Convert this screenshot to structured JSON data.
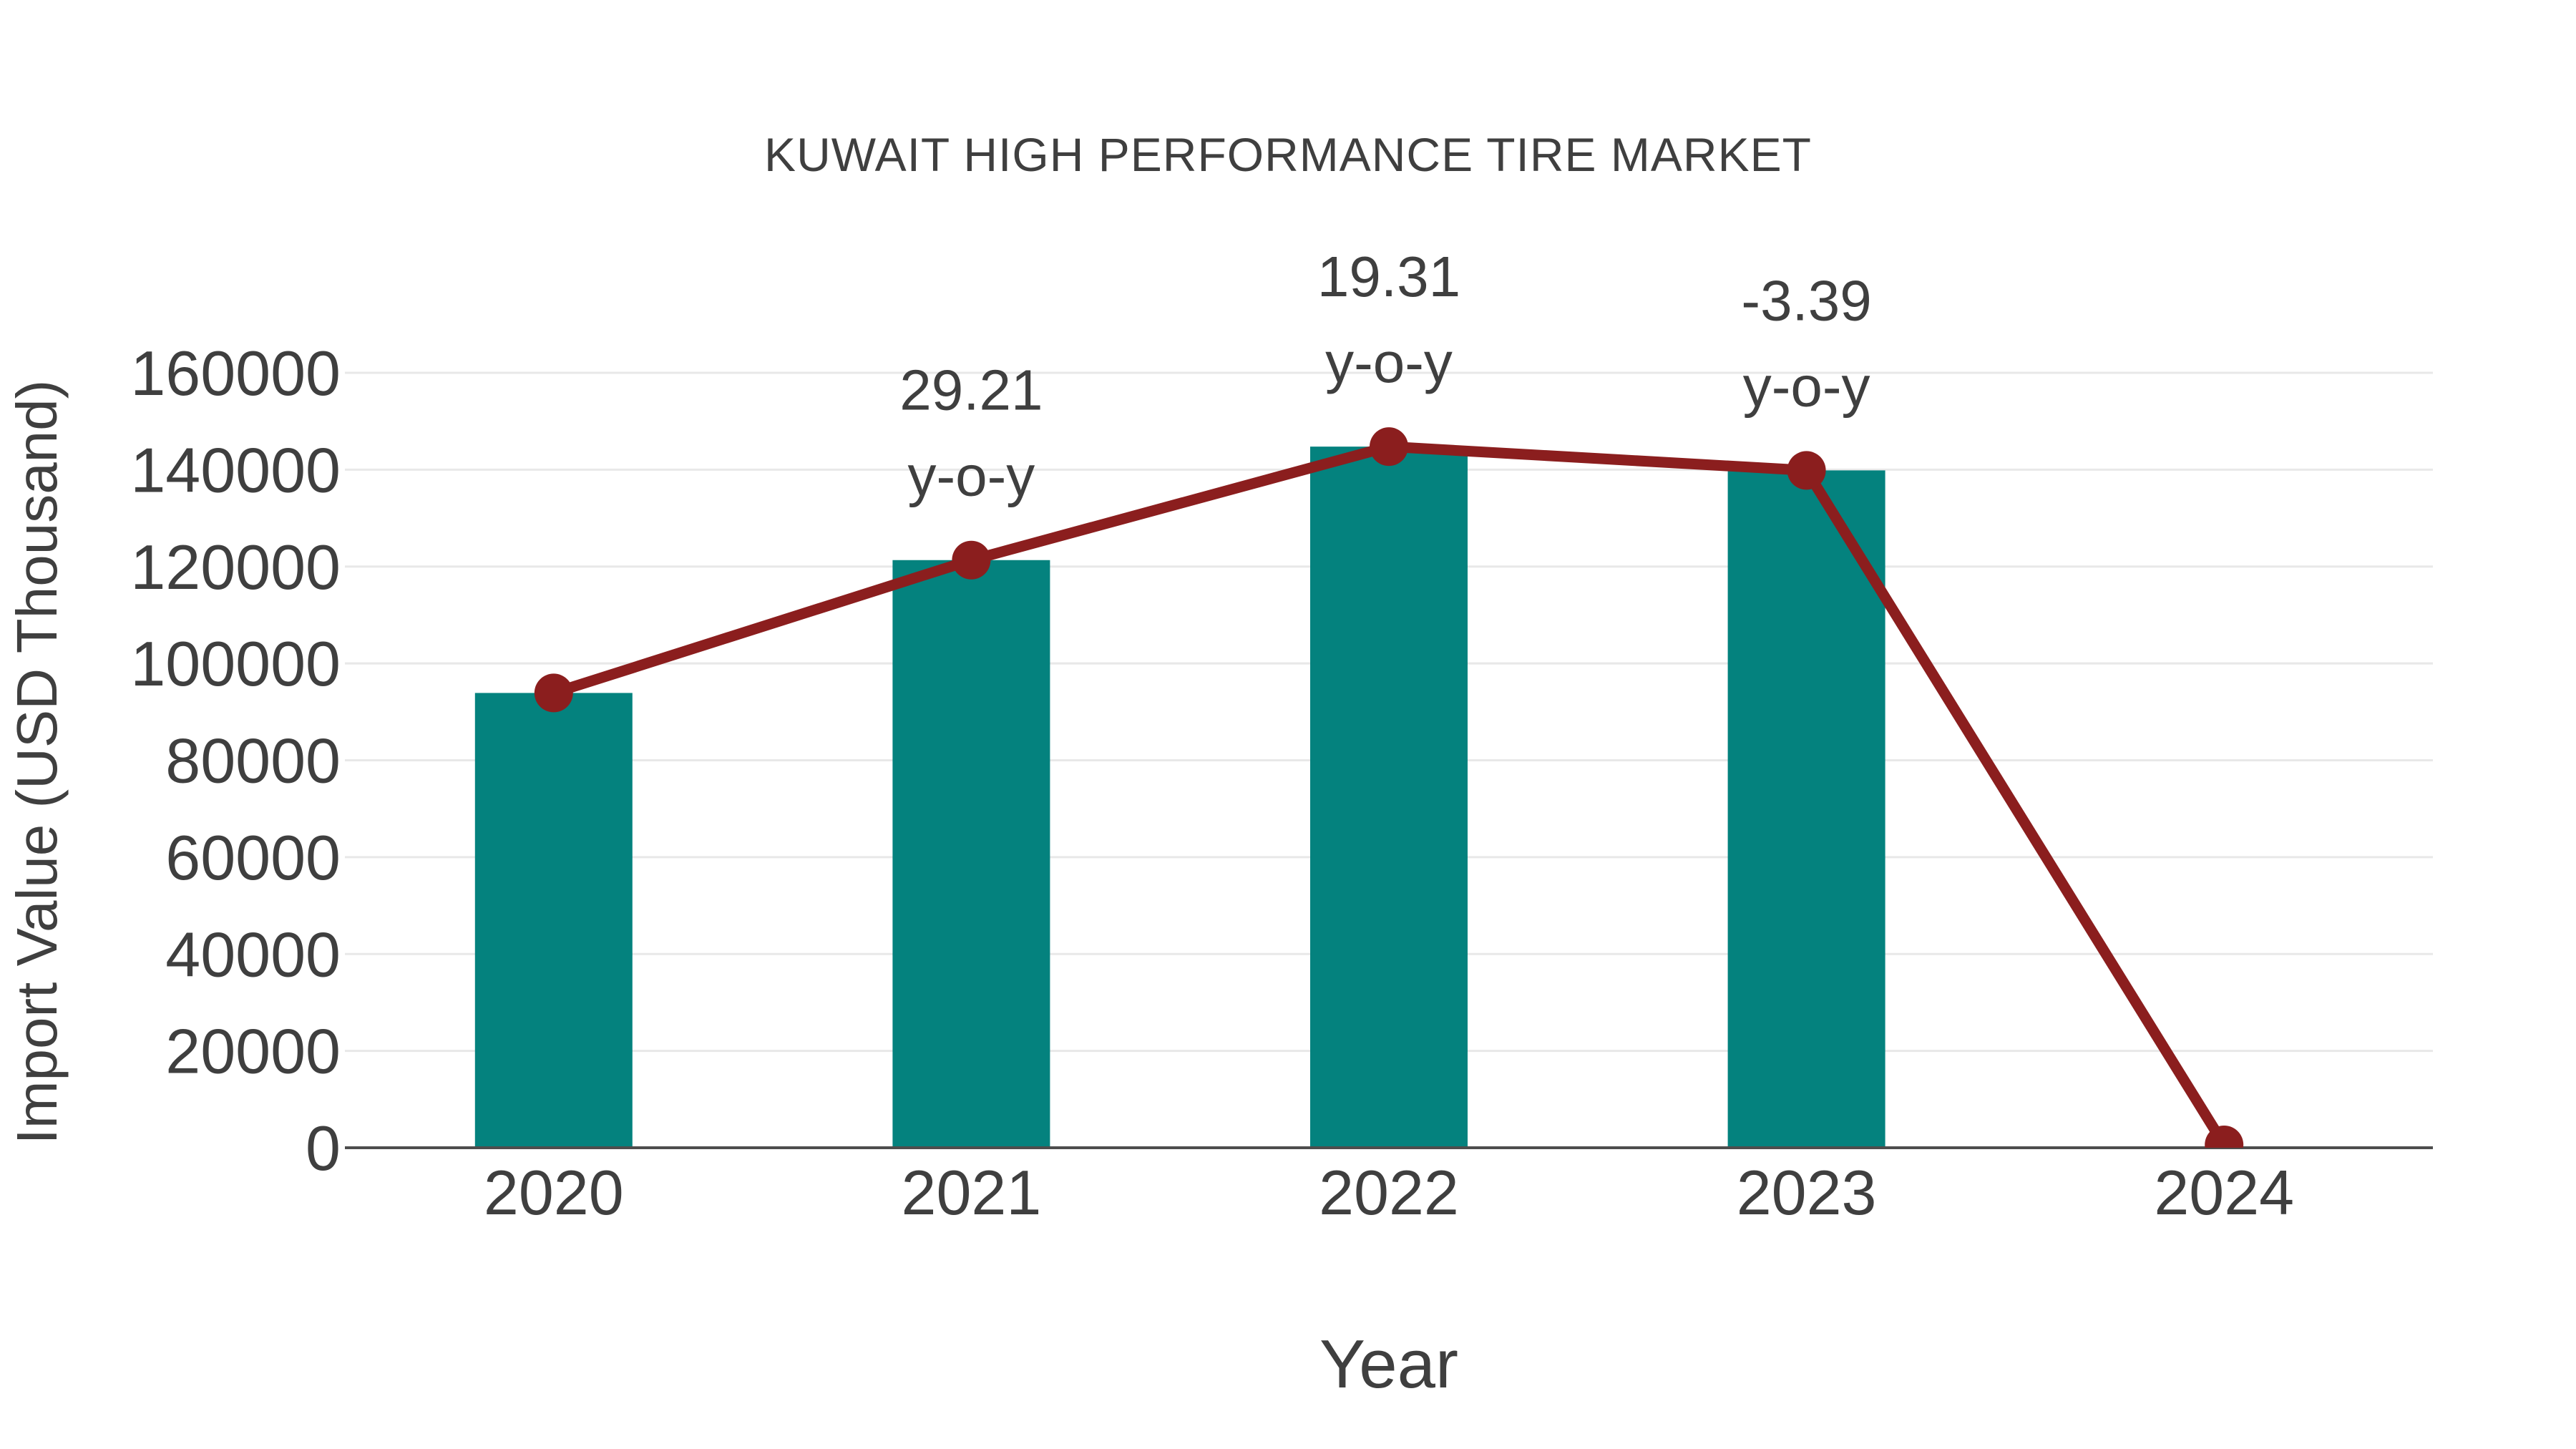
{
  "title": "KUWAIT HIGH PERFORMANCE TIRE MARKET",
  "chart_data": {
    "type": "bar",
    "title": "KUWAIT HIGH PERFORMANCE TIRE MARKET",
    "xlabel": "Year",
    "ylabel": "Import Value (USD Thousand)",
    "categories": [
      "2020",
      "2021",
      "2022",
      "2023",
      "2024"
    ],
    "series": [
      {
        "name": "Import Value (USD Thousand)",
        "type": "bar",
        "color": "#04827E",
        "values": [
          93900,
          121330,
          144760,
          139850,
          null
        ]
      },
      {
        "name": "Import Value trend",
        "type": "line",
        "color": "#8B1E1E",
        "marker_color": "#8B1E1E",
        "values": [
          93900,
          121330,
          144760,
          139850,
          600
        ]
      }
    ],
    "annotations": [
      {
        "category": "2021",
        "lines": [
          "29.21",
          "y-o-y"
        ]
      },
      {
        "category": "2022",
        "lines": [
          "19.31",
          "y-o-y"
        ]
      },
      {
        "category": "2023",
        "lines": [
          "-3.39",
          "y-o-y"
        ]
      }
    ],
    "ylim": [
      0,
      160000
    ],
    "yticks": [
      0,
      20000,
      40000,
      60000,
      80000,
      100000,
      120000,
      140000,
      160000
    ],
    "grid": true,
    "legend": "none",
    "background": "#FFFFFF",
    "text_color": "#3F3F3F",
    "grid_color": "#E8E8E8",
    "axis_color": "#4D4D4D"
  }
}
